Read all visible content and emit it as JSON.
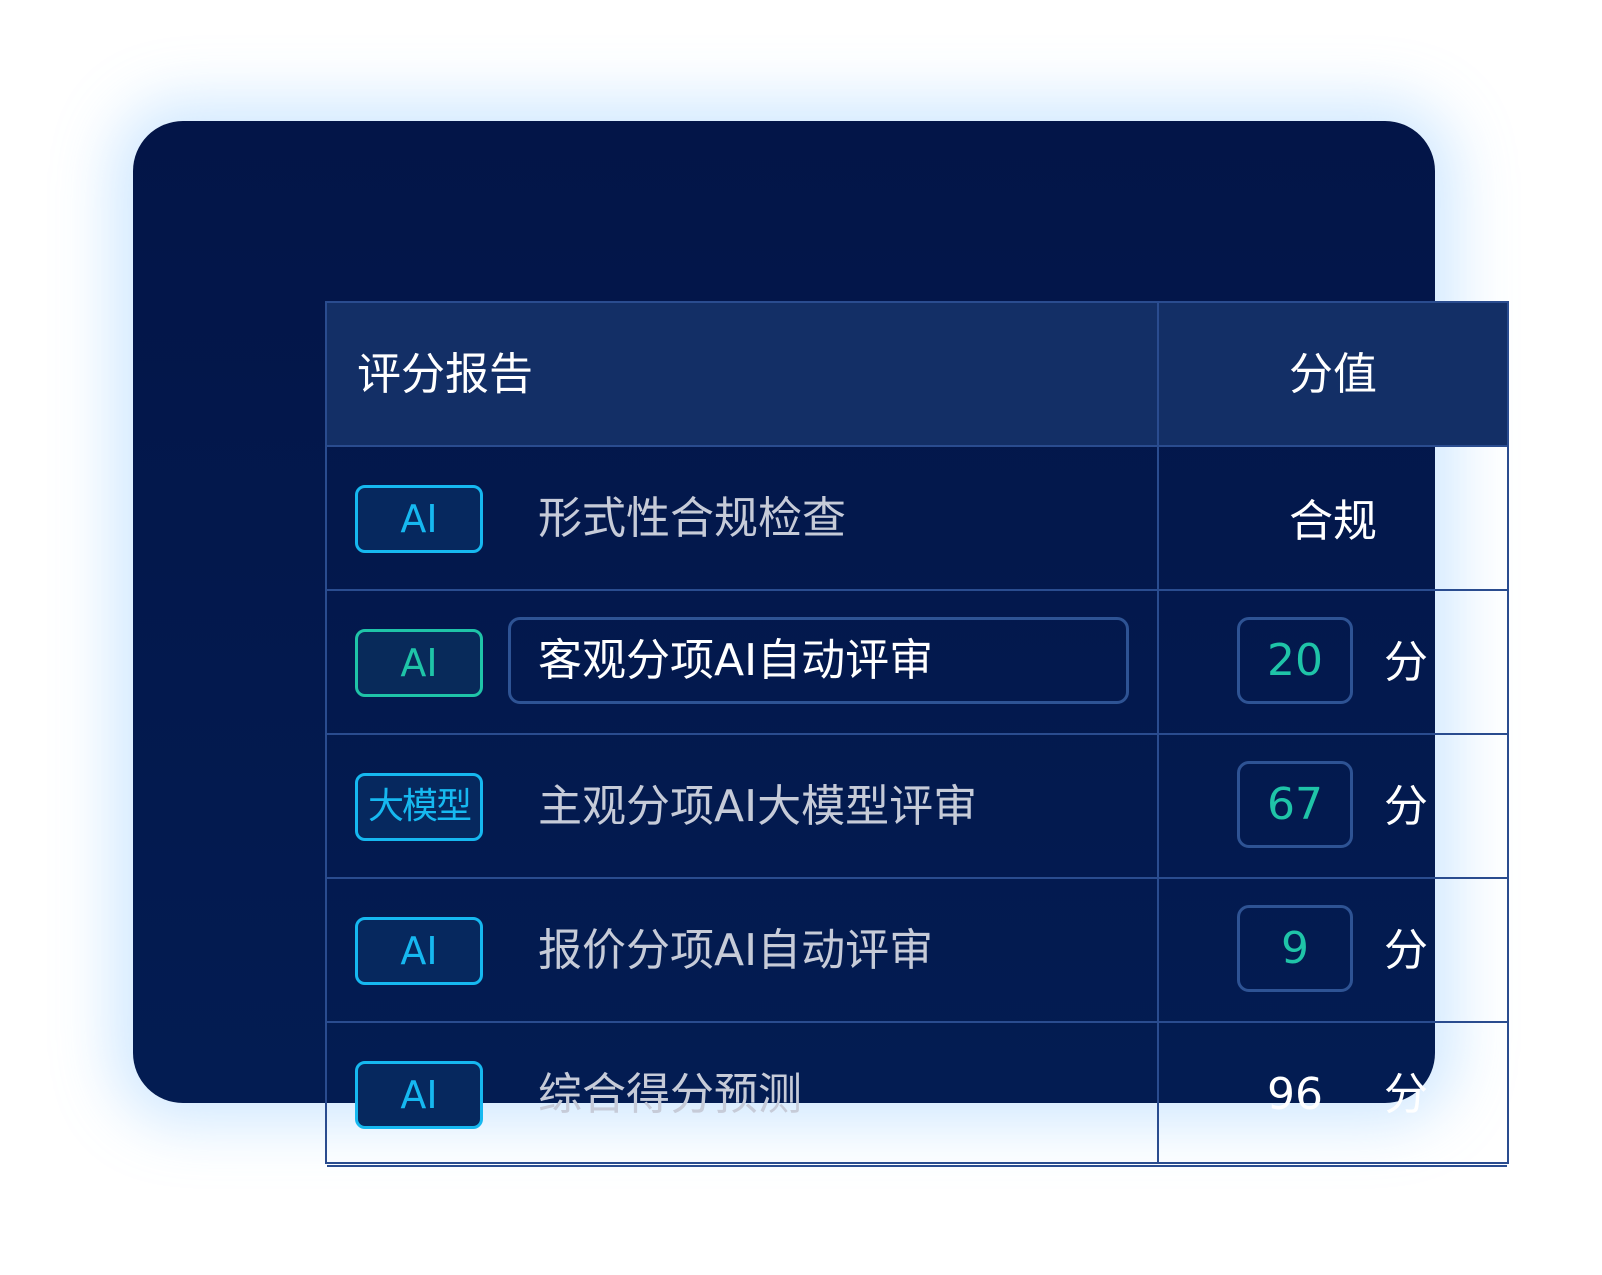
{
  "header": {
    "title": "评分报告",
    "value_col": "分值"
  },
  "rows": [
    {
      "badge": "AI",
      "label": "形式性合规检查",
      "value": "合规",
      "unit": ""
    },
    {
      "badge": "AI",
      "label": "客观分项AI自动评审",
      "value": "20",
      "unit": "分"
    },
    {
      "badge": "大模型",
      "label": "主观分项AI大模型评审",
      "value": "67",
      "unit": "分"
    },
    {
      "badge": "AI",
      "label": "报价分项AI自动评审",
      "value": "9",
      "unit": "分"
    },
    {
      "badge": "AI",
      "label": "综合得分预测",
      "value": "96",
      "unit": "分"
    }
  ],
  "colors": {
    "accent_cyan": "#16b8f0",
    "accent_green": "#1fc4a8",
    "card_bg": "#031a4f",
    "header_bg": "#132f66"
  }
}
